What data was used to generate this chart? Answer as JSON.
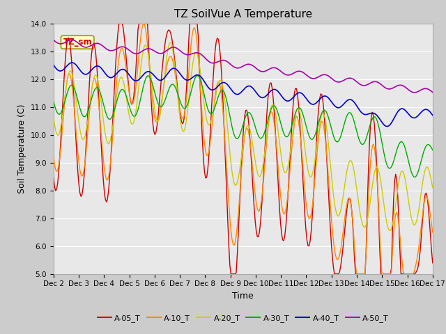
{
  "title": "TZ SoilVue A Temperature",
  "xlabel": "Time",
  "ylabel": "Soil Temperature (C)",
  "ylim": [
    5.0,
    14.0
  ],
  "yticks": [
    5.0,
    6.0,
    7.0,
    8.0,
    9.0,
    10.0,
    11.0,
    12.0,
    13.0,
    14.0
  ],
  "xtick_labels": [
    "Dec 2",
    "Dec 3",
    "Dec 4",
    "Dec 5",
    "Dec 6",
    "Dec 7",
    "Dec 8",
    "Dec 9",
    "Dec 10",
    "Dec 11",
    "Dec 12",
    "Dec 13",
    "Dec 14",
    "Dec 15",
    "Dec 16",
    "Dec 17"
  ],
  "series_colors": {
    "A-05_T": "#cc0000",
    "A-10_T": "#ff8800",
    "A-20_T": "#cccc00",
    "A-30_T": "#00aa00",
    "A-40_T": "#0000cc",
    "A-50_T": "#aa00aa"
  },
  "annotation_text": "TZ_sm",
  "annotation_color": "#cc0000",
  "annotation_bg": "#ffffcc",
  "title_fontsize": 11,
  "axis_label_fontsize": 9,
  "tick_fontsize": 7.5
}
